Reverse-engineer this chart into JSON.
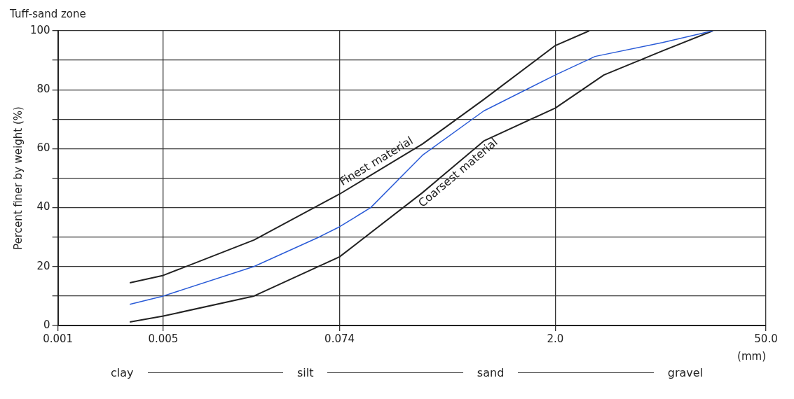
{
  "chart_data": {
    "type": "line",
    "title": "Tuff-sand zone",
    "xlabel": "(mm)",
    "ylabel": "Percent finer by weight (%)",
    "log": "x",
    "xlim": [
      0.001,
      50
    ],
    "xticks": [
      0.001,
      0.005,
      0.074,
      {
        "value": 2,
        "label": "2.0"
      },
      {
        "value": 50,
        "label": "50.0"
      }
    ],
    "ylim": [
      0,
      100
    ],
    "yticks": [
      0,
      {
        "value": 10,
        "label": null
      },
      20,
      {
        "value": 30,
        "label": null
      },
      40,
      {
        "value": 50,
        "label": null
      },
      60,
      {
        "value": 70,
        "label": null
      },
      80,
      {
        "value": 90,
        "label": null
      },
      100
    ],
    "grid": true,
    "legend": false,
    "marker": "none",
    "line_style": "solid",
    "series": [
      {
        "name": "Finest material",
        "color": "#222222",
        "x": [
          0.003,
          0.005,
          0.02,
          0.074,
          0.263,
          0.67,
          2.0,
          3.36
        ],
        "values": [
          14.5,
          17,
          29,
          44.6,
          61.6,
          76.7,
          95,
          100
        ]
      },
      {
        "color": "#2a5bd7",
        "x": [
          0.003,
          0.005,
          0.02,
          0.054,
          0.074,
          0.119,
          0.263,
          0.67,
          2.0,
          3.67,
          10.3,
          22.2
        ],
        "values": [
          7.2,
          10,
          20,
          30,
          33.5,
          40,
          57.8,
          72.8,
          85,
          91.3,
          96,
          100
        ]
      },
      {
        "name": "Coarsest material",
        "color": "#222222",
        "x": [
          0.003,
          0.005,
          0.02,
          0.074,
          0.263,
          0.67,
          2.0,
          4.2,
          10.3,
          22.2
        ],
        "values": [
          1.2,
          3.2,
          10,
          23.3,
          45.1,
          62.6,
          73.8,
          85,
          93.2,
          100
        ]
      }
    ],
    "annotations": [
      "clay",
      "silt",
      "sand",
      "gravel"
    ]
  }
}
